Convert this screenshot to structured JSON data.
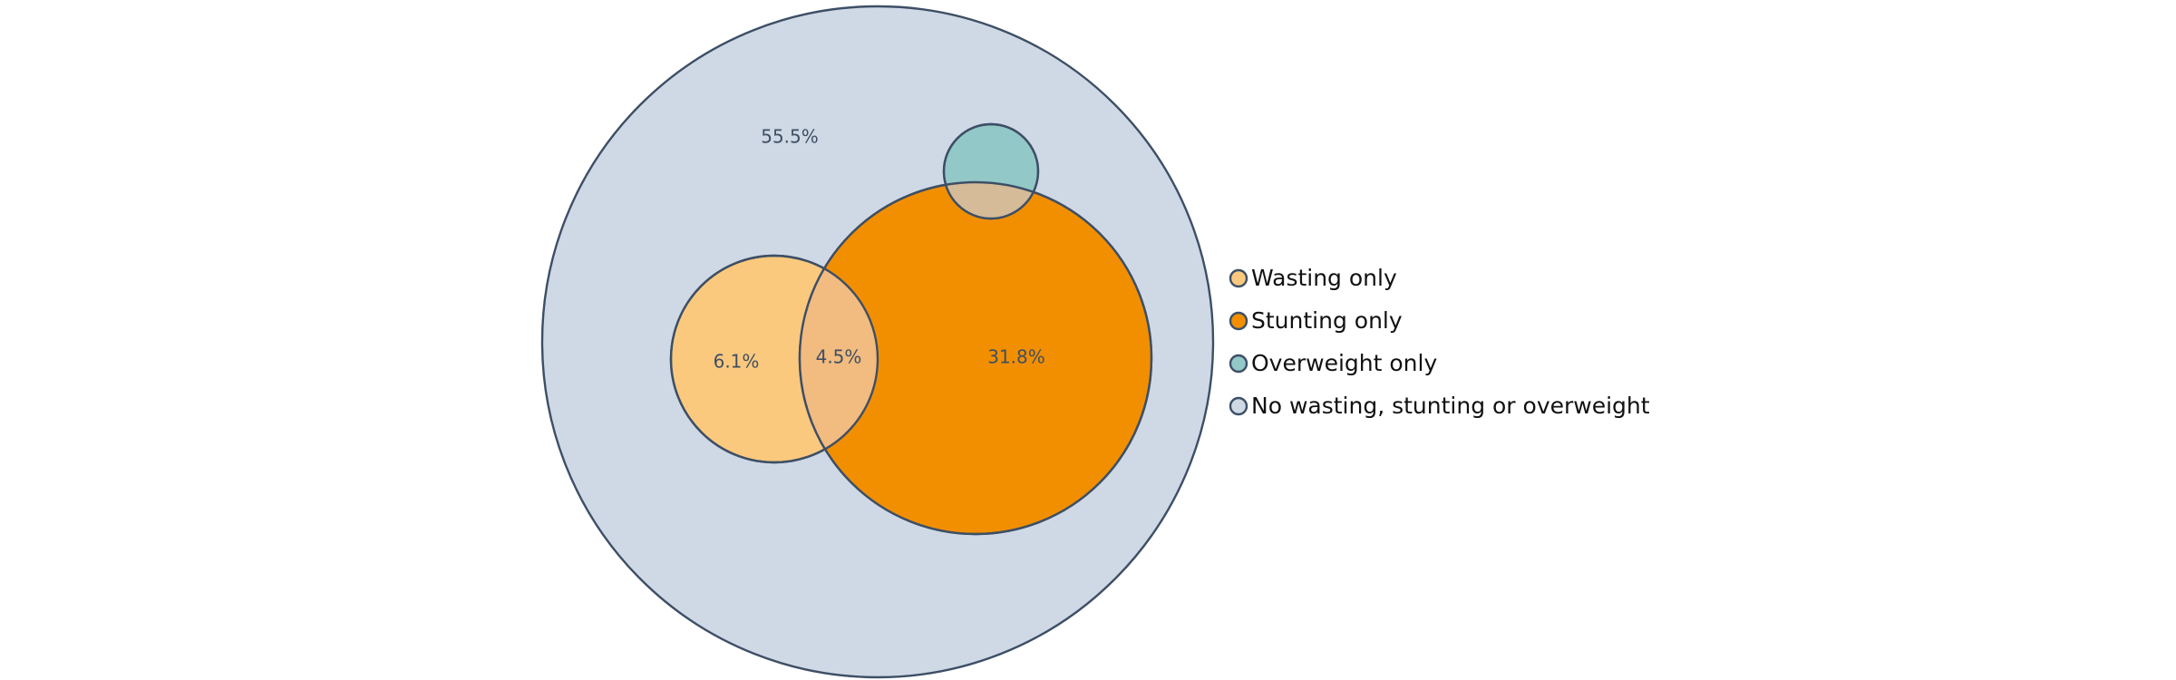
{
  "chart_data": {
    "type": "venn",
    "title": "",
    "sets": [
      {
        "id": "none",
        "name": "No wasting, stunting or overweight",
        "color": "#cfd9e5",
        "area_pct": 55.5
      },
      {
        "id": "wasting",
        "name": "Wasting only",
        "color": "#fbc97e",
        "area_pct": 6.1
      },
      {
        "id": "stunting",
        "name": "Stunting only",
        "color": "#f28f00",
        "area_pct": 31.8
      },
      {
        "id": "overweight",
        "name": "Overweight only",
        "color": "#93c8c8"
      }
    ],
    "overlaps": [
      {
        "sets": [
          "wasting",
          "stunting"
        ],
        "color": "#f2bb80",
        "value_pct": 4.5
      },
      {
        "sets": [
          "overweight",
          "stunting"
        ],
        "color": "#d6bb98"
      }
    ],
    "region_labels": [
      {
        "region": "none",
        "text": "55.5%"
      },
      {
        "region": "wasting",
        "text": "6.1%"
      },
      {
        "region": "wasting-stunting",
        "text": "4.5%"
      },
      {
        "region": "stunting",
        "text": "31.8%"
      }
    ],
    "legend": {
      "placement": "right",
      "entries": [
        {
          "label": "Wasting only",
          "color": "#fbc97e"
        },
        {
          "label": "Stunting only",
          "color": "#f28f00"
        },
        {
          "label": "Overweight only",
          "color": "#93c8c8"
        },
        {
          "label": "No wasting, stunting or overweight",
          "color": "#cfd9e5"
        }
      ]
    },
    "outline_color": "#3d4f66"
  }
}
